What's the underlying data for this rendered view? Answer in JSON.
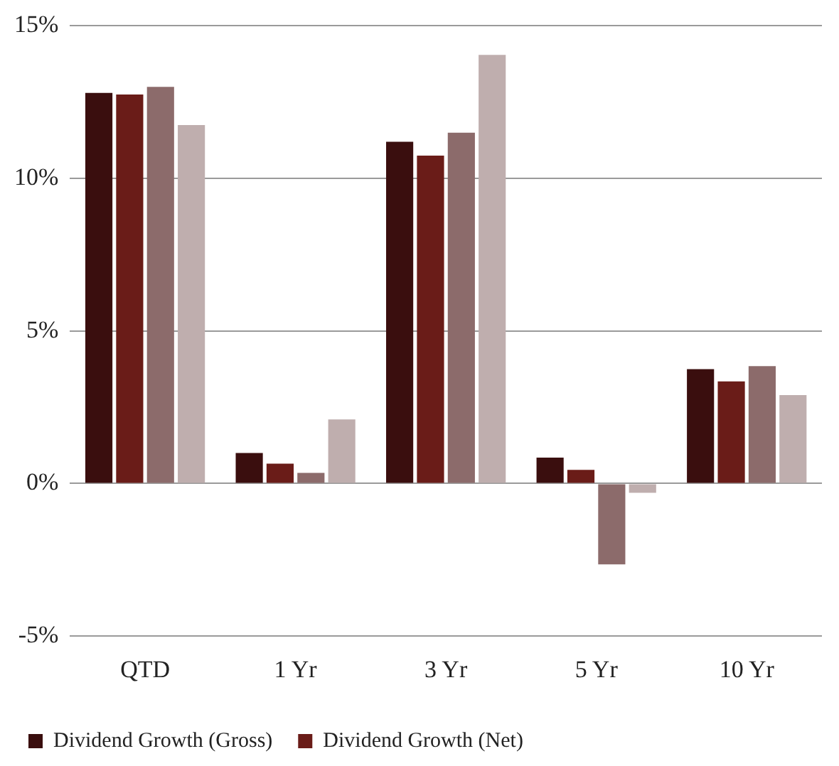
{
  "chart_data": {
    "type": "bar",
    "categories": [
      "QTD",
      "1 Yr",
      "3 Yr",
      "5 Yr",
      "10 Yr"
    ],
    "series": [
      {
        "name": "Dividend Growth (Gross)",
        "color": "#3a0e0e",
        "values": [
          12.8,
          1.0,
          11.2,
          0.85,
          3.75
        ]
      },
      {
        "name": "Dividend Growth (Net)",
        "color": "#6a1c18",
        "values": [
          12.75,
          0.65,
          10.75,
          0.45,
          3.35
        ]
      },
      {
        "color": "#8c6b6b",
        "values": [
          13.0,
          0.35,
          11.5,
          -2.65,
          3.85
        ]
      },
      {
        "color": "#bfaeae",
        "values": [
          11.75,
          2.1,
          14.05,
          -0.3,
          2.9
        ]
      }
    ],
    "ylim": [
      -5,
      15
    ],
    "yticks": [
      {
        "value": -5,
        "label": "-5%"
      },
      {
        "value": 0,
        "label": "0%"
      },
      {
        "value": 5,
        "label": "5%"
      },
      {
        "value": 10,
        "label": "10%"
      },
      {
        "value": 15,
        "label": "15%"
      }
    ],
    "grid": "y",
    "legend": "bottom"
  }
}
